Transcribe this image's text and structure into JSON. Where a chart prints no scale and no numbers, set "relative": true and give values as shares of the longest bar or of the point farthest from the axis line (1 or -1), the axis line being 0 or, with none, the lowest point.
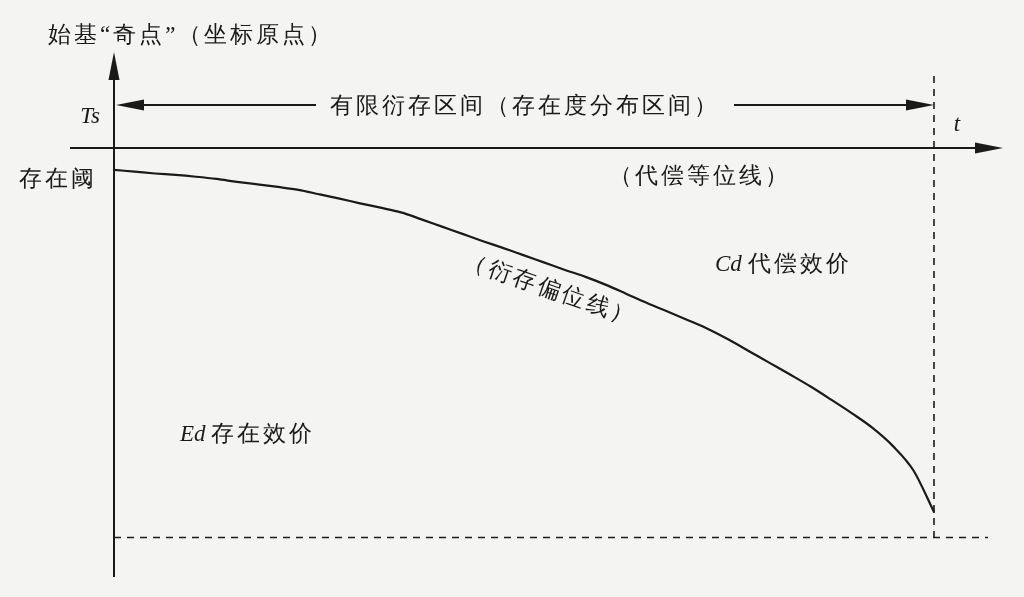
{
  "chart_data": {
    "type": "line",
    "relative": true,
    "xlabel": "t",
    "ylabel": "始基“奇点”（坐标原点）",
    "categories": [
      null,
      null,
      null,
      null,
      null,
      null,
      null,
      null,
      null,
      null,
      null,
      null,
      null,
      null,
      null,
      null,
      null,
      null,
      null,
      null,
      null,
      null,
      null,
      null,
      null,
      null,
      null,
      null,
      null,
      null,
      null,
      null,
      null,
      null,
      null,
      null,
      null,
      null,
      null,
      null,
      null
    ],
    "series": [
      {
        "color": "#1a1a1a",
        "values": [
          -0.06,
          -0.065,
          -0.07,
          -0.074,
          -0.079,
          -0.085,
          -0.093,
          -0.1,
          -0.107,
          -0.115,
          -0.127,
          -0.139,
          -0.152,
          -0.164,
          -0.177,
          -0.196,
          -0.216,
          -0.236,
          -0.256,
          -0.275,
          -0.295,
          -0.315,
          -0.335,
          -0.354,
          -0.376,
          -0.401,
          -0.426,
          -0.449,
          -0.473,
          -0.498,
          -0.527,
          -0.559,
          -0.591,
          -0.623,
          -0.656,
          -0.692,
          -0.729,
          -0.769,
          -0.819,
          -0.886,
          -1
        ]
      }
    ],
    "ref_lines": [
      {
        "axis": "y",
        "value": -1.07,
        "line_style": "dashed",
        "color": "#1a1a1a"
      }
    ],
    "annotations": [
      "Ts",
      "有限衍存区间（存在度分布区间）",
      "存在阈",
      "（代偿等位线）",
      "（衍存偏位线）",
      "Cd 代偿效价",
      "Ed 存在效价"
    ]
  }
}
